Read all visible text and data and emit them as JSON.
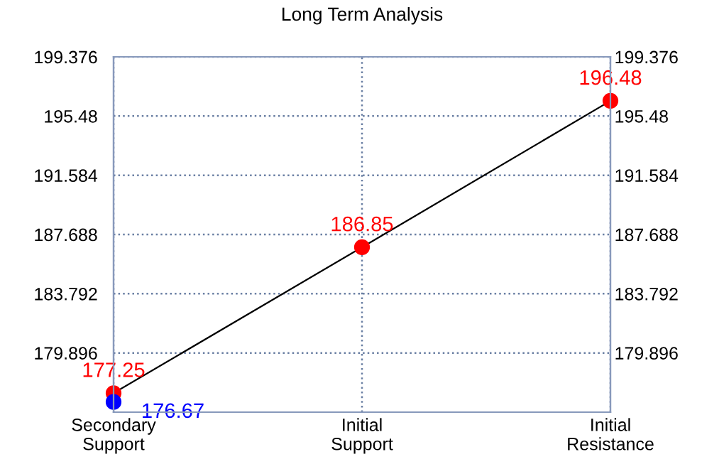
{
  "chart_data": {
    "type": "line",
    "title": "Long Term Analysis",
    "categories": [
      "Secondary\nSupport",
      "Initial\nSupport",
      "Initial\nResistance"
    ],
    "series": [
      {
        "color": "#ff0000",
        "values": [
          177.25,
          186.85,
          196.48
        ]
      },
      {
        "type": "scatter",
        "color": "#0000ff",
        "values": [
          176.67,
          null,
          null
        ]
      }
    ],
    "data_labels": true,
    "marker": "circle",
    "grid": true,
    "ylim": [
      176.0,
      199.376
    ],
    "yticks": [
      179.896,
      183.792,
      187.688,
      191.584,
      195.48,
      199.376
    ],
    "y2lim": [
      176.0,
      199.376
    ],
    "y2ticks": [
      179.896,
      183.792,
      187.688,
      191.584,
      195.48,
      199.376
    ]
  }
}
